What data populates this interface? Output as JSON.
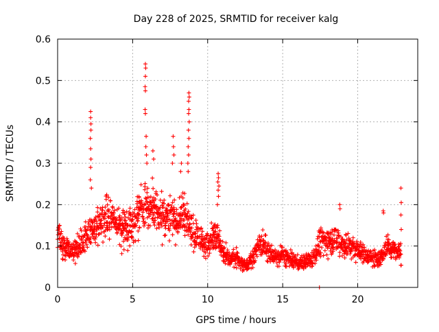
{
  "chart_data": {
    "type": "scatter",
    "title": "Day 228 of 2025, SRMTID for receiver kalg",
    "xlabel": "GPS time / hours",
    "ylabel": "SRMTID / TECUs",
    "xlim": [
      0,
      24
    ],
    "ylim": [
      0,
      0.6
    ],
    "x_ticks": [
      0,
      5,
      10,
      15,
      20
    ],
    "x_tick_labels": [
      "0",
      "5",
      "10",
      "15",
      "20"
    ],
    "y_ticks": [
      0,
      0.1,
      0.2,
      0.3,
      0.4,
      0.5,
      0.6
    ],
    "y_tick_labels": [
      "0",
      "0.1",
      "0.2",
      "0.3",
      "0.4",
      "0.5",
      "0.6"
    ],
    "grid": true,
    "marker": "+",
    "series": [
      {
        "name": "SRMTID",
        "color": "#ff0000",
        "x_range": [
          0,
          22.9
        ],
        "sample_step_hours": 0.0167,
        "baseline_profile": [
          [
            0.0,
            0.13
          ],
          [
            0.5,
            0.1
          ],
          [
            1.0,
            0.085
          ],
          [
            1.5,
            0.1
          ],
          [
            2.0,
            0.13
          ],
          [
            2.5,
            0.14
          ],
          [
            3.0,
            0.16
          ],
          [
            3.5,
            0.17
          ],
          [
            4.0,
            0.15
          ],
          [
            4.5,
            0.14
          ],
          [
            5.0,
            0.15
          ],
          [
            5.5,
            0.19
          ],
          [
            6.0,
            0.2
          ],
          [
            6.5,
            0.18
          ],
          [
            7.0,
            0.17
          ],
          [
            7.5,
            0.17
          ],
          [
            8.0,
            0.16
          ],
          [
            8.5,
            0.17
          ],
          [
            9.0,
            0.13
          ],
          [
            9.5,
            0.12
          ],
          [
            10.0,
            0.1
          ],
          [
            10.5,
            0.13
          ],
          [
            11.0,
            0.09
          ],
          [
            11.5,
            0.07
          ],
          [
            12.0,
            0.07
          ],
          [
            12.5,
            0.05
          ],
          [
            13.0,
            0.07
          ],
          [
            13.5,
            0.11
          ],
          [
            14.0,
            0.09
          ],
          [
            14.5,
            0.07
          ],
          [
            15.0,
            0.08
          ],
          [
            15.5,
            0.065
          ],
          [
            16.0,
            0.06
          ],
          [
            16.5,
            0.06
          ],
          [
            17.0,
            0.07
          ],
          [
            17.5,
            0.11
          ],
          [
            18.0,
            0.11
          ],
          [
            18.5,
            0.12
          ],
          [
            19.0,
            0.1
          ],
          [
            19.5,
            0.1
          ],
          [
            20.0,
            0.09
          ],
          [
            20.5,
            0.08
          ],
          [
            21.0,
            0.07
          ],
          [
            21.5,
            0.07
          ],
          [
            22.0,
            0.1
          ],
          [
            22.5,
            0.09
          ],
          [
            22.9,
            0.08
          ]
        ],
        "spike_points": [
          {
            "x": 2.2,
            "y": 0.425
          },
          {
            "x": 2.2,
            "y": 0.41
          },
          {
            "x": 2.22,
            "y": 0.395
          },
          {
            "x": 2.22,
            "y": 0.38
          },
          {
            "x": 2.18,
            "y": 0.36
          },
          {
            "x": 2.2,
            "y": 0.335
          },
          {
            "x": 2.22,
            "y": 0.31
          },
          {
            "x": 2.2,
            "y": 0.29
          },
          {
            "x": 2.18,
            "y": 0.26
          },
          {
            "x": 2.25,
            "y": 0.24
          },
          {
            "x": 5.85,
            "y": 0.54
          },
          {
            "x": 5.87,
            "y": 0.53
          },
          {
            "x": 5.85,
            "y": 0.51
          },
          {
            "x": 5.83,
            "y": 0.485
          },
          {
            "x": 5.85,
            "y": 0.475
          },
          {
            "x": 5.83,
            "y": 0.43
          },
          {
            "x": 5.85,
            "y": 0.42
          },
          {
            "x": 5.9,
            "y": 0.365
          },
          {
            "x": 5.88,
            "y": 0.34
          },
          {
            "x": 5.92,
            "y": 0.32
          },
          {
            "x": 5.95,
            "y": 0.3
          },
          {
            "x": 6.35,
            "y": 0.33
          },
          {
            "x": 6.4,
            "y": 0.31
          },
          {
            "x": 7.7,
            "y": 0.365
          },
          {
            "x": 7.72,
            "y": 0.34
          },
          {
            "x": 7.75,
            "y": 0.32
          },
          {
            "x": 7.65,
            "y": 0.3
          },
          {
            "x": 8.2,
            "y": 0.28
          },
          {
            "x": 8.25,
            "y": 0.3
          },
          {
            "x": 8.75,
            "y": 0.47
          },
          {
            "x": 8.77,
            "y": 0.46
          },
          {
            "x": 8.73,
            "y": 0.45
          },
          {
            "x": 8.75,
            "y": 0.43
          },
          {
            "x": 8.73,
            "y": 0.42
          },
          {
            "x": 8.77,
            "y": 0.4
          },
          {
            "x": 8.72,
            "y": 0.38
          },
          {
            "x": 8.75,
            "y": 0.36
          },
          {
            "x": 8.7,
            "y": 0.34
          },
          {
            "x": 8.73,
            "y": 0.32
          },
          {
            "x": 8.68,
            "y": 0.3
          },
          {
            "x": 8.7,
            "y": 0.28
          },
          {
            "x": 10.7,
            "y": 0.275
          },
          {
            "x": 10.72,
            "y": 0.265
          },
          {
            "x": 10.68,
            "y": 0.255
          },
          {
            "x": 10.75,
            "y": 0.245
          },
          {
            "x": 10.7,
            "y": 0.235
          },
          {
            "x": 10.72,
            "y": 0.22
          },
          {
            "x": 10.65,
            "y": 0.2
          },
          {
            "x": 17.45,
            "y": 0.0
          },
          {
            "x": 18.8,
            "y": 0.2
          },
          {
            "x": 18.82,
            "y": 0.19
          },
          {
            "x": 21.7,
            "y": 0.185
          },
          {
            "x": 21.72,
            "y": 0.18
          },
          {
            "x": 22.88,
            "y": 0.24
          },
          {
            "x": 22.9,
            "y": 0.205
          },
          {
            "x": 22.88,
            "y": 0.175
          },
          {
            "x": 22.9,
            "y": 0.14
          }
        ]
      }
    ]
  }
}
